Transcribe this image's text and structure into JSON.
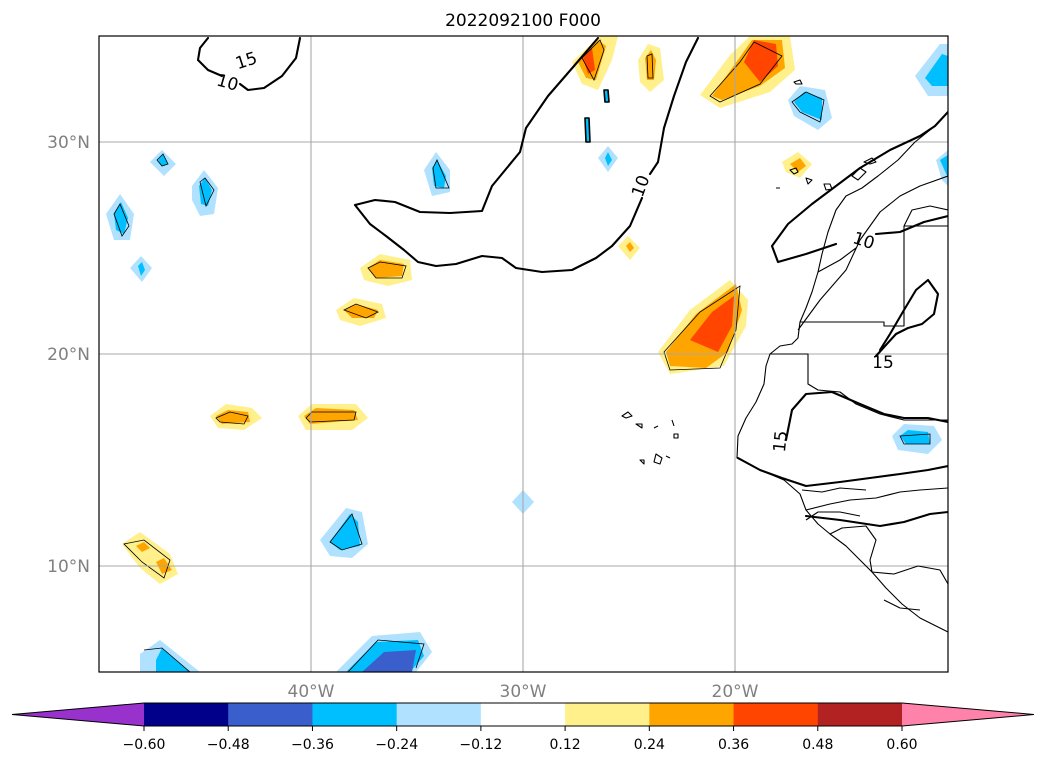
{
  "title": "2022092100 F000",
  "map": {
    "lat_labels": [
      "30°N",
      "20°N",
      "10°N"
    ],
    "lon_labels": [
      "40°W",
      "30°W",
      "20°W"
    ],
    "contour_labels": [
      "15",
      "10",
      "10",
      "10",
      "15",
      "15"
    ]
  },
  "colorbar": {
    "colors": [
      "#9932cc",
      "#00008b",
      "#3a5fcd",
      "#00bfff",
      "#b0e2ff",
      "#ffffff",
      "#fff08c",
      "#ffa500",
      "#ff4500",
      "#b22222",
      "#ff82ab"
    ],
    "ticks": [
      "−0.60",
      "−0.48",
      "−0.36",
      "−0.24",
      "−0.12",
      "0.12",
      "0.24",
      "0.36",
      "0.48",
      "0.60"
    ],
    "extend": "both"
  }
}
